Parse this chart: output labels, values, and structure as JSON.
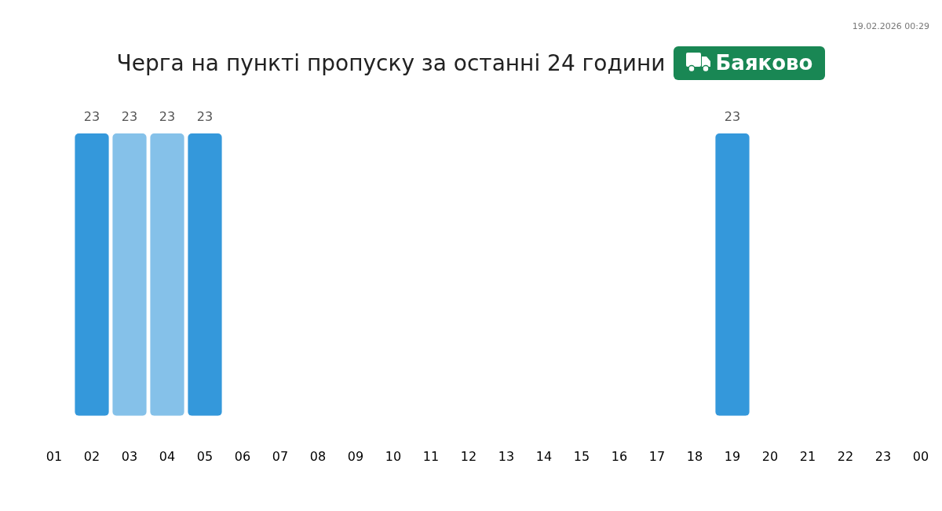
{
  "chart_data": {
    "type": "bar",
    "title": "Черга на пункті пропуску за останні 24 години",
    "subtitle": "Баяково",
    "annotations": [
      "19.02.2026 00:29"
    ],
    "categories": [
      "01",
      "02",
      "03",
      "04",
      "05",
      "06",
      "07",
      "08",
      "09",
      "10",
      "11",
      "12",
      "13",
      "14",
      "15",
      "16",
      "17",
      "18",
      "19",
      "20",
      "21",
      "22",
      "23",
      "00"
    ],
    "values": [
      null,
      23,
      23,
      23,
      23,
      null,
      null,
      null,
      null,
      null,
      null,
      null,
      null,
      null,
      null,
      null,
      null,
      null,
      23,
      null,
      null,
      null,
      null,
      null
    ],
    "colors": [
      null,
      "#3498db",
      "#85c1e9",
      "#85c1e9",
      "#3498db",
      null,
      null,
      null,
      null,
      null,
      null,
      null,
      null,
      null,
      null,
      null,
      null,
      null,
      "#3498db",
      null,
      null,
      null,
      null,
      null
    ],
    "data_labels": true,
    "grid": false,
    "legend": false
  }
}
